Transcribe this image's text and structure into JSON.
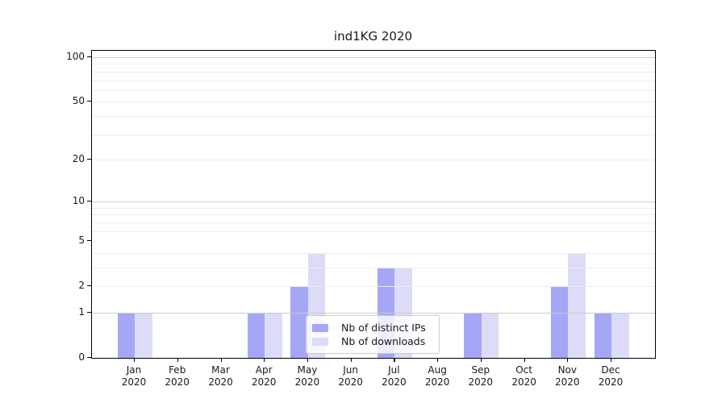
{
  "title": "ind1KG 2020",
  "chart_data": {
    "type": "bar",
    "title": "ind1KG 2020",
    "categories": [
      "Jan",
      "Feb",
      "Mar",
      "Apr",
      "May",
      "Jun",
      "Jul",
      "Aug",
      "Sep",
      "Oct",
      "Nov",
      "Dec"
    ],
    "year_label": "2020",
    "series": [
      {
        "name": "Nb of distinct IPs",
        "color": "#a6a6f6",
        "values": [
          1,
          0,
          0,
          1,
          2,
          0,
          3,
          0,
          1,
          0,
          2,
          1
        ]
      },
      {
        "name": "Nb of downloads",
        "color": "#dcdcf8",
        "values": [
          1,
          0,
          0,
          1,
          4,
          0,
          3,
          0,
          1,
          0,
          4,
          1
        ]
      }
    ],
    "y_scale": "log10(1+y)",
    "ylim": [
      0,
      110
    ],
    "y_tick_labels": [
      0,
      1,
      2,
      5,
      10,
      20,
      50,
      100
    ],
    "y_major_gridlines": [
      1,
      10,
      100
    ],
    "y_minor_gridlines": [
      2,
      3,
      4,
      6,
      7,
      8,
      9,
      20,
      30,
      40,
      50,
      60,
      70,
      80,
      90
    ],
    "grid": "on",
    "legend": {
      "position": "lower center",
      "entries": [
        "Nb of distinct IPs",
        "Nb of downloads"
      ]
    },
    "colors": {
      "bar_distinct_ips": "#a6a6f6",
      "bar_downloads": "#dcdcf8",
      "major_grid": "#cccccc",
      "minor_grid": "#ececec",
      "axis_line": "#000000",
      "text": "#1a1a1a",
      "legend_border": "#cccccc"
    }
  }
}
